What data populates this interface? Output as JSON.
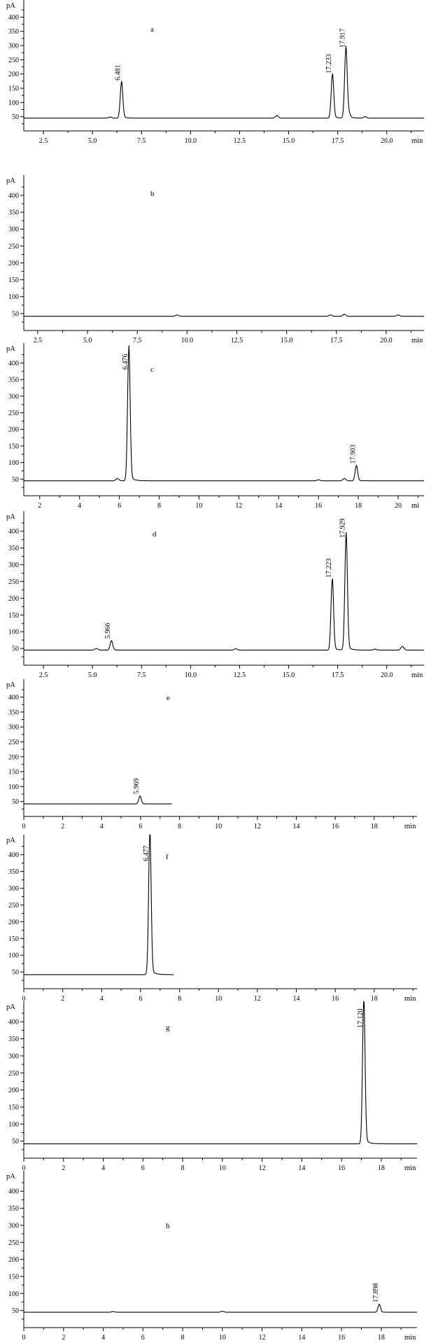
{
  "chart_data": [
    {
      "type": "line",
      "panel_label": "a",
      "ylabel": "pA",
      "xlabel": "min",
      "xlim": [
        1.5,
        21.9
      ],
      "ylim": [
        0,
        460
      ],
      "xticks": [
        2.5,
        5.0,
        7.5,
        10.0,
        12.5,
        15.0,
        17.5,
        20.0
      ],
      "xtick_labels": [
        "2.5",
        "5.0",
        "7.5",
        "10.0",
        "12.5",
        "15.0",
        "17.5",
        "20.0"
      ],
      "yticks": [
        50,
        100,
        150,
        200,
        250,
        300,
        350,
        400
      ],
      "ytick_labels": [
        "50",
        "100",
        "150",
        "200",
        "250",
        "300",
        "350",
        "400"
      ],
      "baseline": 45,
      "trace_end": 21.9,
      "peaks": [
        {
          "x": 6.481,
          "y": 170,
          "label": "6.481"
        },
        {
          "x": 17.233,
          "y": 195,
          "label": "17.233"
        },
        {
          "x": 17.917,
          "y": 285,
          "label": "17.917"
        }
      ],
      "minor_peaks": [
        {
          "x": 5.9,
          "y": 49
        },
        {
          "x": 14.4,
          "y": 54
        },
        {
          "x": 18.05,
          "y": 62
        },
        {
          "x": 18.9,
          "y": 50
        }
      ]
    },
    {
      "type": "line",
      "panel_label": "b",
      "ylabel": "pA",
      "xlabel": "min",
      "xlim": [
        1.8,
        21.9
      ],
      "ylim": [
        0,
        460
      ],
      "xticks": [
        2.5,
        5.0,
        7.5,
        10.0,
        12.5,
        15.0,
        17.5,
        20.0
      ],
      "xtick_labels": [
        "2.5",
        "5.0",
        "7.5",
        "10.0",
        "12.5",
        "15.0",
        "17.5",
        "20.0"
      ],
      "yticks": [
        50,
        100,
        150,
        200,
        250,
        300,
        350,
        400
      ],
      "ytick_labels": [
        "50",
        "100",
        "150",
        "200",
        "250",
        "300",
        "350",
        "400"
      ],
      "baseline": 42,
      "trace_end": 21.9,
      "peaks": [],
      "minor_peaks": [
        {
          "x": 9.5,
          "y": 46
        },
        {
          "x": 17.2,
          "y": 46
        },
        {
          "x": 17.9,
          "y": 48
        },
        {
          "x": 20.6,
          "y": 46
        }
      ]
    },
    {
      "type": "line",
      "panel_label": "c",
      "ylabel": "pA",
      "xlabel": "mi",
      "xlim": [
        1.2,
        21.3
      ],
      "ylim": [
        0,
        460
      ],
      "xticks": [
        2,
        4,
        6,
        8,
        10,
        12,
        14,
        16,
        18,
        20
      ],
      "xtick_labels": [
        "2",
        "4",
        "6",
        "8",
        "10",
        "12",
        "14",
        "16",
        "18",
        "20"
      ],
      "yticks": [
        50,
        100,
        150,
        200,
        250,
        300,
        350,
        400
      ],
      "ytick_labels": [
        "50",
        "100",
        "150",
        "200",
        "250",
        "300",
        "350",
        "400"
      ],
      "baseline": 45,
      "trace_end": 21.3,
      "peaks": [
        {
          "x": 6.476,
          "y": 440,
          "label": "6.476"
        },
        {
          "x": 17.903,
          "y": 90,
          "label": "17.903"
        }
      ],
      "minor_peaks": [
        {
          "x": 5.9,
          "y": 52
        },
        {
          "x": 16.0,
          "y": 48
        },
        {
          "x": 17.3,
          "y": 52
        }
      ]
    },
    {
      "type": "line",
      "panel_label": "d",
      "ylabel": "pA",
      "xlabel": "min",
      "xlim": [
        1.5,
        21.9
      ],
      "ylim": [
        0,
        460
      ],
      "xticks": [
        2.5,
        5.0,
        7.5,
        10.0,
        12.5,
        15.0,
        17.5,
        20.0
      ],
      "xtick_labels": [
        "2.5",
        "5.0",
        "7.5",
        "10.0",
        "12.5",
        "15.0",
        "17.5",
        "20.0"
      ],
      "yticks": [
        50,
        100,
        150,
        200,
        250,
        300,
        350,
        400
      ],
      "ytick_labels": [
        "50",
        "100",
        "150",
        "200",
        "250",
        "300",
        "350",
        "400"
      ],
      "baseline": 45,
      "trace_end": 21.9,
      "peaks": [
        {
          "x": 5.966,
          "y": 73,
          "label": "5.966"
        },
        {
          "x": 17.223,
          "y": 255,
          "label": "17.223"
        },
        {
          "x": 17.929,
          "y": 385,
          "label": "17.929"
        }
      ],
      "minor_peaks": [
        {
          "x": 5.2,
          "y": 50
        },
        {
          "x": 12.3,
          "y": 49
        },
        {
          "x": 19.4,
          "y": 48
        },
        {
          "x": 20.8,
          "y": 56
        }
      ]
    },
    {
      "type": "line",
      "panel_label": "e",
      "ylabel": "pA",
      "xlabel": "min",
      "xlim": [
        0,
        20.2
      ],
      "ylim": [
        0,
        460
      ],
      "xticks": [
        0,
        2,
        4,
        6,
        8,
        10,
        12,
        14,
        16,
        18
      ],
      "xtick_labels": [
        "0",
        "2",
        "4",
        "6",
        "8",
        "10",
        "12",
        "14",
        "16",
        "18"
      ],
      "yticks": [
        50,
        100,
        150,
        200,
        250,
        300,
        350,
        400
      ],
      "ytick_labels": [
        "50",
        "100",
        "150",
        "200",
        "250",
        "300",
        "350",
        "400"
      ],
      "baseline": 42,
      "trace_end": 7.6,
      "peaks": [
        {
          "x": 5.969,
          "y": 68,
          "label": "5.969"
        }
      ],
      "minor_peaks": []
    },
    {
      "type": "line",
      "panel_label": "f",
      "ylabel": "pA",
      "xlabel": "min",
      "xlim": [
        0,
        20.2
      ],
      "ylim": [
        0,
        460
      ],
      "xticks": [
        0,
        2,
        4,
        6,
        8,
        10,
        12,
        14,
        16,
        18
      ],
      "xtick_labels": [
        "0",
        "2",
        "4",
        "6",
        "8",
        "10",
        "12",
        "14",
        "16",
        "18"
      ],
      "yticks": [
        50,
        100,
        150,
        200,
        250,
        300,
        350,
        400
      ],
      "ytick_labels": [
        "50",
        "100",
        "150",
        "200",
        "250",
        "300",
        "350",
        "400"
      ],
      "baseline": 42,
      "trace_end": 7.7,
      "peaks": [
        {
          "x": 6.477,
          "y": 460,
          "label": "6.477"
        }
      ],
      "minor_peaks": []
    },
    {
      "type": "line",
      "panel_label": "g",
      "ylabel": "pA",
      "xlabel": "min",
      "xlim": [
        0,
        19.8
      ],
      "ylim": [
        0,
        460
      ],
      "xticks": [
        0,
        2,
        4,
        6,
        8,
        10,
        12,
        14,
        16,
        18
      ],
      "xtick_labels": [
        "0",
        "2",
        "4",
        "6",
        "8",
        "10",
        "12",
        "14",
        "16",
        "18"
      ],
      "yticks": [
        50,
        100,
        150,
        200,
        250,
        300,
        350,
        400
      ],
      "ytick_labels": [
        "50",
        "100",
        "150",
        "200",
        "250",
        "300",
        "350",
        "400"
      ],
      "baseline": 42,
      "trace_end": 19.8,
      "peaks": [
        {
          "x": 17.12,
          "y": 460,
          "label": "17.120"
        }
      ],
      "minor_peaks": []
    },
    {
      "type": "line",
      "panel_label": "h",
      "ylabel": "pA",
      "xlabel": "min",
      "xlim": [
        0,
        19.8
      ],
      "ylim": [
        0,
        460
      ],
      "xticks": [
        0,
        2,
        4,
        6,
        8,
        10,
        12,
        14,
        16,
        18
      ],
      "xtick_labels": [
        "0",
        "2",
        "4",
        "6",
        "8",
        "10",
        "12",
        "14",
        "16",
        "18"
      ],
      "yticks": [
        50,
        100,
        150,
        200,
        250,
        300,
        350,
        400
      ],
      "ytick_labels": [
        "50",
        "100",
        "150",
        "200",
        "250",
        "300",
        "350",
        "400"
      ],
      "baseline": 45,
      "trace_end": 19.8,
      "peaks": [
        {
          "x": 17.898,
          "y": 68,
          "label": "17.898"
        }
      ],
      "minor_peaks": [
        {
          "x": 4.5,
          "y": 47
        },
        {
          "x": 10.0,
          "y": 48
        }
      ]
    }
  ]
}
